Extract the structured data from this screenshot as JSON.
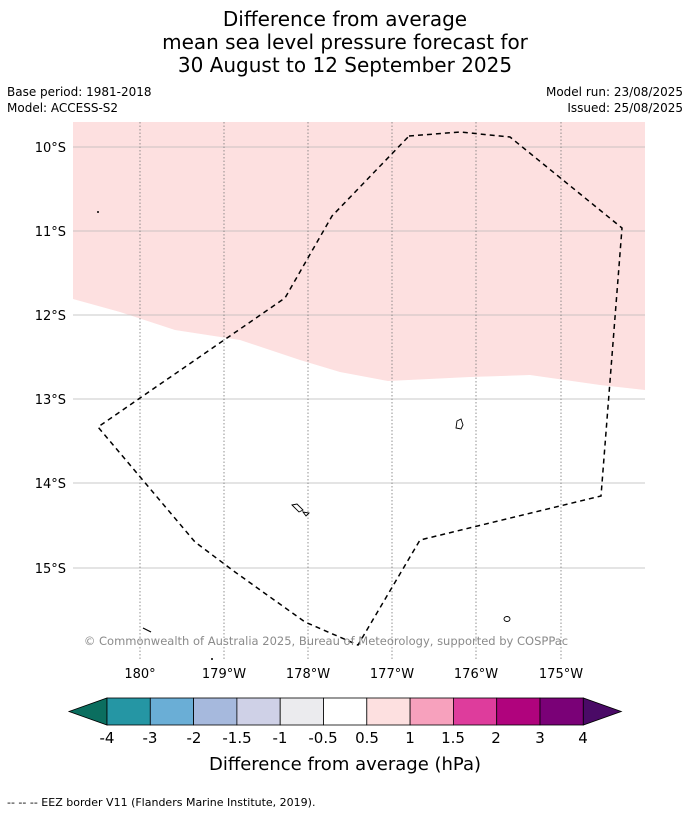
{
  "title": {
    "line1": "Difference from average",
    "line2": "mean sea level pressure forecast for",
    "line3": "30 August to 12 September 2025"
  },
  "meta": {
    "base_period": "Base period: 1981-2018",
    "model": "Model: ACCESS-S2",
    "model_run": "Model run: 23/08/2025",
    "issued": "Issued: 25/08/2025"
  },
  "map": {
    "lat_labels": [
      "10°S",
      "11°S",
      "12°S",
      "13°S",
      "14°S",
      "15°S"
    ],
    "lon_labels": [
      "180°",
      "179°W",
      "178°W",
      "177°W",
      "176°W",
      "175°W"
    ],
    "copyright": "© Commonwealth of Australia 2025, Bureau of Meteorology, supported by COSPPac",
    "shaded_category": "0.5 to 1"
  },
  "colorbar": {
    "ticks": [
      "-4",
      "-3",
      "-2",
      "-1.5",
      "-1",
      "-0.5",
      "0.5",
      "1",
      "1.5",
      "2",
      "3",
      "4"
    ],
    "colors": [
      "#0b6e5f",
      "#2596a4",
      "#6aaed6",
      "#a6b9dd",
      "#cfd1e7",
      "#ebebee",
      "#ffffff",
      "#fde0e0",
      "#f7a1bd",
      "#de3c9c",
      "#b0037d",
      "#7a0177",
      "#4a0a66"
    ],
    "label": "Difference from average (hPa)"
  },
  "footnote": "--  --  -- EEZ border V11 (Flanders Marine Institute, 2019)."
}
